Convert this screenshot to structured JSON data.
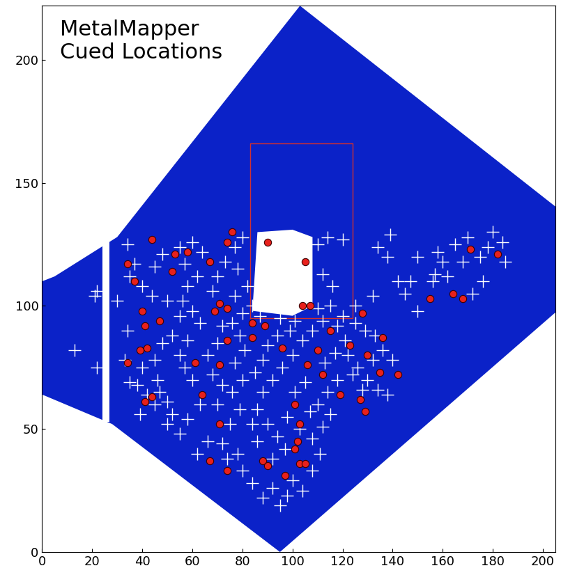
{
  "chart_data": {
    "type": "scatter",
    "annotation": "MetalMapper\nCued Locations",
    "xlim": [
      0,
      205
    ],
    "ylim": [
      0,
      222
    ],
    "xticks": [
      0,
      20,
      40,
      60,
      80,
      100,
      120,
      140,
      160,
      180,
      200
    ],
    "yticks": [
      0,
      50,
      100,
      150,
      200
    ],
    "grid": false,
    "series": [
      {
        "type": "area",
        "color": "#0b22c8",
        "x": [
          0,
          28,
          95,
          208,
          208,
          103,
          30,
          5,
          0
        ],
        "values": [
          64,
          52,
          0,
          100,
          138,
          222,
          128,
          112,
          110
        ]
      },
      {
        "type": "area",
        "color": "#ffffff",
        "x": [
          24,
          27,
          27,
          24
        ],
        "values": [
          53,
          53,
          128,
          128
        ]
      },
      {
        "type": "line",
        "color": "#d03030",
        "x": [
          83,
          124,
          124,
          83,
          83
        ],
        "values": [
          95,
          95,
          166,
          166,
          95
        ]
      },
      {
        "type": "area",
        "color": "#ffffff",
        "x": [
          84,
          86,
          100,
          108,
          108,
          100
        ],
        "values": [
          98,
          130,
          131,
          128,
          100,
          96
        ]
      },
      {
        "type": "scatter",
        "color": "#ffffff",
        "marker": "plus",
        "x": [
          13,
          22,
          21,
          22,
          30,
          34,
          35,
          37,
          34,
          33,
          35,
          38,
          40,
          45,
          46,
          42,
          47,
          50,
          52,
          50,
          45,
          39,
          48,
          52,
          55,
          50,
          44,
          40,
          45,
          48,
          55,
          60,
          64,
          57,
          62,
          58,
          56,
          60,
          63,
          58,
          55,
          57,
          60,
          63,
          58,
          55,
          62,
          66,
          70,
          72,
          68,
          66,
          70,
          72,
          68,
          70,
          73,
          77,
          80,
          78,
          82,
          77,
          80,
          84,
          76,
          79,
          81,
          77,
          80,
          76,
          79,
          75,
          72,
          78,
          74,
          80,
          84,
          88,
          92,
          95,
          98,
          100,
          104,
          108,
          111,
          108,
          112,
          115,
          110,
          114,
          118,
          113,
          117,
          121,
          118,
          112,
          108,
          104,
          100,
          96,
          92,
          88,
          86,
          90,
          94,
          97,
          92,
          86,
          84,
          98,
          101,
          105,
          107,
          103,
          99,
          94,
          90,
          88,
          85,
          95,
          101,
          110,
          115,
          120,
          125,
          122,
          126,
          130,
          134,
          138,
          128,
          124,
          132,
          136,
          140,
          133,
          129,
          125,
          132,
          116,
          112,
          110,
          114,
          120,
          134,
          138,
          139,
          142,
          145,
          150,
          157,
          160,
          158,
          156,
          162,
          165,
          168,
          170,
          175,
          178,
          180,
          184,
          185,
          172,
          176,
          150,
          147,
          92,
          87,
          104,
          97
        ],
        "values": [
          82,
          106,
          104,
          75,
          102,
          125,
          112,
          117,
          90,
          78,
          69,
          68,
          75,
          78,
          70,
          64,
          65,
          61,
          56,
          52,
          60,
          56,
          85,
          88,
          96,
          102,
          104,
          108,
          116,
          121,
          124,
          126,
          122,
          117,
          112,
          108,
          102,
          98,
          93,
          86,
          80,
          75,
          70,
          60,
          54,
          48,
          40,
          45,
          60,
          68,
          72,
          80,
          85,
          92,
          106,
          112,
          118,
          124,
          128,
          115,
          108,
          104,
          97,
          100,
          93,
          88,
          82,
          77,
          70,
          65,
          58,
          52,
          44,
          40,
          38,
          33,
          28,
          22,
          26,
          19,
          23,
          29,
          25,
          33,
          40,
          46,
          51,
          56,
          60,
          65,
          70,
          77,
          81,
          86,
          92,
          94,
          90,
          86,
          80,
          75,
          70,
          65,
          58,
          52,
          47,
          42,
          38,
          45,
          52,
          55,
          65,
          69,
          57,
          50,
          90,
          88,
          84,
          78,
          73,
          95,
          94,
          99,
          100,
          96,
          93,
          80,
          75,
          70,
          66,
          64,
          66,
          72,
          78,
          82,
          78,
          88,
          90,
          100,
          104,
          108,
          113,
          125,
          128,
          127,
          124,
          120,
          129,
          110,
          105,
          120,
          113,
          118,
          122,
          110,
          112,
          125,
          118,
          128,
          120,
          124,
          130,
          126,
          118,
          105,
          110,
          98,
          110,
          100,
          96,
          103,
          104
        ]
      },
      {
        "type": "scatter",
        "color": "#e8211c",
        "marker": "circle",
        "x": [
          44,
          34,
          37,
          53,
          58,
          52,
          67,
          74,
          76,
          90,
          105,
          71,
          69,
          74,
          40,
          41,
          47,
          104,
          107,
          84,
          89,
          115,
          128,
          84,
          74,
          96,
          110,
          123,
          130,
          136,
          39,
          42,
          34,
          61,
          71,
          106,
          112,
          135,
          142,
          44,
          41,
          64,
          119,
          127,
          101,
          129,
          71,
          103,
          102,
          101,
          103,
          105,
          88,
          90,
          97,
          67,
          74,
          155,
          164,
          168,
          171,
          182
        ],
        "values": [
          127,
          117,
          110,
          121,
          122,
          114,
          118,
          126,
          130,
          126,
          118,
          101,
          98,
          99,
          98,
          92,
          94,
          100,
          100,
          93,
          92,
          90,
          97,
          87,
          86,
          83,
          82,
          84,
          80,
          87,
          82,
          83,
          77,
          77,
          76,
          76,
          72,
          73,
          72,
          63,
          61,
          64,
          64,
          62,
          60,
          57,
          52,
          52,
          45,
          42,
          36,
          36,
          37,
          35,
          31,
          37,
          33,
          103,
          105,
          103,
          123,
          121
        ]
      }
    ]
  }
}
